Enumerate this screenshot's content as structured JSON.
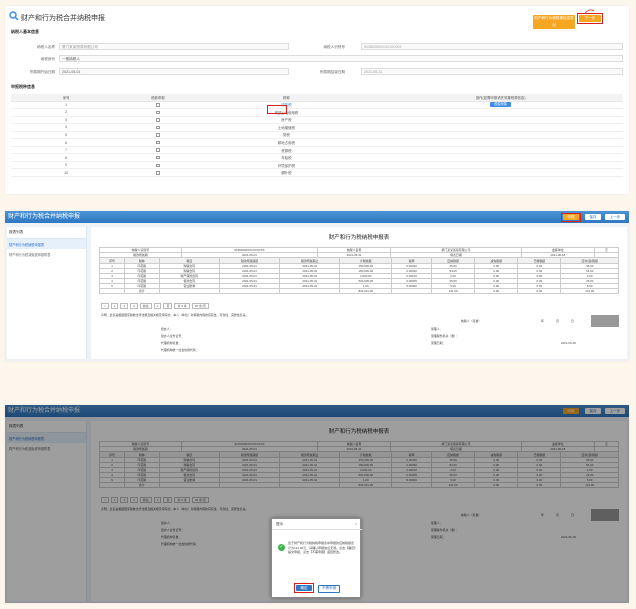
{
  "p1": {
    "title": "财产和行为税合并纳税申报",
    "btn_export": "财产和行为税税源信息导出",
    "btn_next": "下一步",
    "sec_basic": "纳税人基本信息",
    "f_name_lbl": "纳税人名称",
    "f_name_val": "厦门某某贸易有限公司",
    "f_id_lbl": "纳税人识别号",
    "f_id_val": "91350200XXXXXXXXX",
    "f_ident_lbl": "纳税身份",
    "f_ident_val": "一般纳税人",
    "f_start_lbl": "所属期开始日期",
    "f_start_val": "2021-05-01",
    "f_end_lbl": "所属期结束日期",
    "f_end_val": "2021-05-31",
    "sec_items": "申报税种信息",
    "cols": [
      "序号",
      "税款申报",
      "税种",
      "操作(如需申报请先采集税源信息)"
    ],
    "rows": [
      {
        "n": "1",
        "tax": "印花税",
        "op": "税源采集"
      },
      {
        "n": "2",
        "tax": "城镇土地使用税",
        "op": ""
      },
      {
        "n": "3",
        "tax": "房产税",
        "op": ""
      },
      {
        "n": "4",
        "tax": "土地增值税",
        "op": ""
      },
      {
        "n": "5",
        "tax": "契税",
        "op": ""
      },
      {
        "n": "6",
        "tax": "耕地占用税",
        "op": ""
      },
      {
        "n": "7",
        "tax": "资源税",
        "op": ""
      },
      {
        "n": "8",
        "tax": "车船税",
        "op": ""
      },
      {
        "n": "9",
        "tax": "环境保护税",
        "op": ""
      },
      {
        "n": "10",
        "tax": "烟叶税",
        "op": ""
      }
    ]
  },
  "p2": {
    "header": "财产和行为税合并纳税申报",
    "btn_submit": "申报",
    "btn_save": "保存",
    "btn_prev": "上一步",
    "side_hd": "报表列表",
    "side_items": [
      "财产和行为税纳税申报表",
      "财产和行为税减免税申报附表"
    ],
    "report_title": "财产和行为税纳税申报表",
    "info": [
      [
        "纳税人识别号",
        "91350200XXXXXXXXX",
        "纳税人名称",
        "厦门某某贸易有限公司",
        "金额单位",
        "元"
      ],
      [
        "税款所属期",
        "2021-05-01",
        "2021-05-31",
        "填表日期",
        "2021-06-18"
      ]
    ],
    "grid_head": [
      "序号",
      "税种",
      "税目",
      "税款所属期起",
      "税款所属期止",
      "计税依据",
      "税率",
      "应纳税额",
      "减免税额",
      "已缴税额",
      "应补(退)税额"
    ],
    "grid_rows": [
      [
        "1",
        "印花税",
        "购销合同",
        "2021-05-01",
        "2021-05-31",
        "150,000.00",
        "0.00030",
        "45.00",
        "0.00",
        "0.00",
        "45.00"
      ],
      [
        "2",
        "印花税",
        "购销合同",
        "2021-05-01",
        "2021-05-31",
        "180,000.00",
        "0.00030",
        "54.00",
        "0.00",
        "0.00",
        "54.00"
      ],
      [
        "3",
        "印花税",
        "财产保险合同",
        "2021-05-01",
        "2021-05-31",
        "2,000.00",
        "0.00100",
        "2.00",
        "0.00",
        "0.00",
        "2.00"
      ],
      [
        "4",
        "印花税",
        "借款合同",
        "2021-05-01",
        "2021-05-31",
        "500,000.00",
        "0.00005",
        "25.00",
        "0.00",
        "0.00",
        "25.00"
      ],
      [
        "5",
        "印花税",
        "营业账簿",
        "2021-05-01",
        "2021-05-31",
        "1.00",
        "5.00000",
        "5.00",
        "0.00",
        "0.00",
        "5.00"
      ],
      [
        "",
        "合计",
        "",
        "",
        "",
        "832,001.00",
        "",
        "131.00",
        "0.00",
        "0.00",
        "131.00"
      ]
    ],
    "pager": [
      "<",
      "1",
      "2",
      "3",
      "前往",
      "1",
      "页",
      "共 6 条",
      "20 条/页"
    ],
    "declare": "声明：此表是根据国家税收法律法规及相关规定填写的，本人（单位）对填报内容的真实性、可靠性、完整性负责。",
    "sign_lbl": "纳税人（签章）",
    "sign_date": [
      "年",
      "月",
      "日"
    ],
    "agent": [
      "经办人：",
      "经办人身份证号：",
      "代理机构签章：",
      "代理机构统一社会信用代码：",
      "受理人：",
      "受理税务机关（章）：",
      "受理日期："
    ],
    "accept_date": "2021-06-18"
  },
  "p3": {
    "modal_title": "提示",
    "modal_text": "您于财产和行为税纳税申报表中申报的应纳税额合计为131.00元，请确认申报信息无误。点击【确定】提交申报，点击【不需申报】返回修改。",
    "btn_ok": "确定",
    "btn_cancel": "不需申报",
    "close": "×"
  },
  "colors": {
    "accent": "#f5a623",
    "blue": "#2f77c0",
    "red": "#d9211c"
  }
}
